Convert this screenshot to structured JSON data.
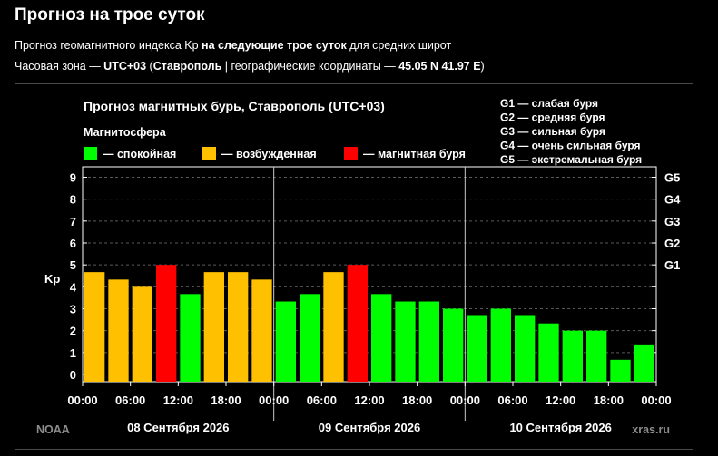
{
  "header": {
    "title": "Прогноз на трое суток",
    "line1": {
      "pre": "Прогноз геомагнитного индекса Kp ",
      "bold": "на следующие трое суток",
      "post": " для средних широт"
    },
    "line2": {
      "pre": "Часовая зона — ",
      "tz": "UTC+03",
      "mid1": " (",
      "city": "Ставрополь",
      "mid2": " | географические координаты — ",
      "coords": "45.05 N 41.97 E",
      "post": ")"
    }
  },
  "chart_data": {
    "type": "bar",
    "title": "Прогноз магнитных бурь, Ставрополь (UTC+03)",
    "legend_title": "Магнитосфера",
    "legend": [
      {
        "key": "calm",
        "label": "— спокойная",
        "color": "#00ff00"
      },
      {
        "key": "excited",
        "label": "— возбужденная",
        "color": "#ffc000"
      },
      {
        "key": "storm",
        "label": "— магнитная буря",
        "color": "#ff0000"
      }
    ],
    "g_legend": [
      "G1 — слабая буря",
      "G2 — средняя буря",
      "G3 — сильная буря",
      "G4 — очень сильная буря",
      "G5 — экстремальная буря"
    ],
    "ylabel": "Kp",
    "ylim": [
      0,
      9
    ],
    "yticks": [
      "0",
      "1",
      "2",
      "3",
      "4",
      "5",
      "6",
      "7",
      "8",
      "9"
    ],
    "g_levels": [
      {
        "label": "G1",
        "kp": 5
      },
      {
        "label": "G2",
        "kp": 6
      },
      {
        "label": "G3",
        "kp": 7
      },
      {
        "label": "G4",
        "kp": 8
      },
      {
        "label": "G5",
        "kp": 9
      }
    ],
    "xtick_labels": [
      "00:00",
      "06:00",
      "12:00",
      "18:00",
      "00:00",
      "06:00",
      "12:00",
      "18:00",
      "00:00",
      "06:00",
      "12:00",
      "18:00",
      "00:00"
    ],
    "days": [
      "08 Сентября 2026",
      "09 Сентября 2026",
      "10 Сентября 2026"
    ],
    "values": [
      4.67,
      4.33,
      4.0,
      5.0,
      3.67,
      4.67,
      4.67,
      4.33,
      3.33,
      3.67,
      4.67,
      5.0,
      3.67,
      3.33,
      3.33,
      3.0,
      2.67,
      3.0,
      2.67,
      2.33,
      2.0,
      2.0,
      0.67,
      1.33
    ],
    "colors": {
      "calm": "#00ff00",
      "excited": "#ffc000",
      "storm": "#ff0000"
    },
    "grid": true,
    "source_left": "NOAA",
    "source_right": "xras.ru"
  }
}
